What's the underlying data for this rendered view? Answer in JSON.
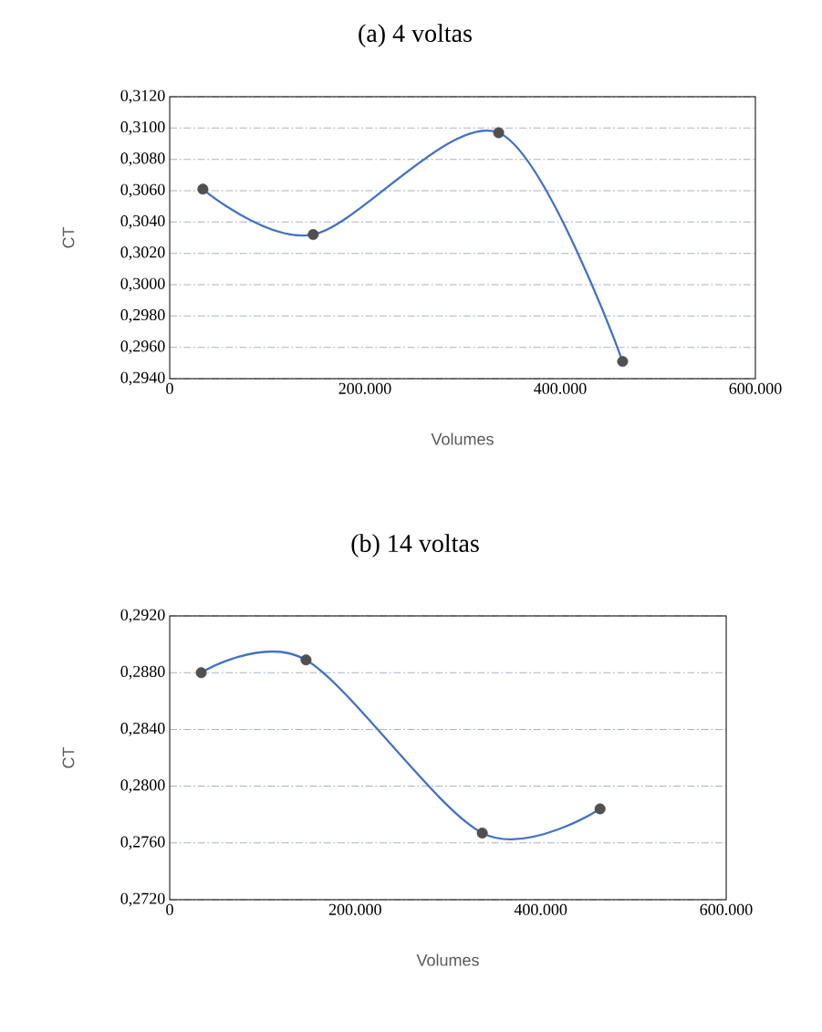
{
  "chart_data": [
    {
      "type": "line",
      "title": "(a) 4 voltas",
      "xlabel": "Volumes",
      "ylabel": "CT",
      "x": [
        34000,
        147000,
        337000,
        464000
      ],
      "series": [
        {
          "type": "line",
          "color": "#4472c4",
          "marker": "none",
          "values": [
            0.3061,
            0.3032,
            0.3097,
            0.2951
          ]
        },
        {
          "type": "scatter",
          "color": "#505050",
          "marker": "circle",
          "values": [
            0.3061,
            0.3032,
            0.3097,
            0.2951
          ]
        }
      ],
      "xlim": [
        0,
        600000
      ],
      "xticks": [
        0,
        {
          "value": 200000,
          "label": "200.000"
        },
        {
          "value": 400000,
          "label": "400.000"
        },
        {
          "value": 600000,
          "label": "600.000"
        }
      ],
      "ylim": [
        0.294,
        0.312
      ],
      "yticks": [
        {
          "value": 0.294,
          "label": "0,2940"
        },
        {
          "value": 0.296,
          "label": "0,2960"
        },
        {
          "value": 0.298,
          "label": "0,2980"
        },
        {
          "value": 0.3,
          "label": "0,3000"
        },
        {
          "value": 0.302,
          "label": "0,3020"
        },
        {
          "value": 0.304,
          "label": "0,3040"
        },
        {
          "value": 0.306,
          "label": "0,3060"
        },
        {
          "value": 0.308,
          "label": "0,3080"
        },
        {
          "value": 0.31,
          "label": "0,3100"
        },
        {
          "value": 0.312,
          "label": "0,3120"
        }
      ],
      "grid": "y"
    },
    {
      "type": "line",
      "title": "(b) 14 voltas",
      "xlabel": "Volumes",
      "ylabel": "CT",
      "x": [
        34000,
        147000,
        337000,
        464000
      ],
      "series": [
        {
          "type": "line",
          "color": "#4472c4",
          "marker": "none",
          "values": [
            0.288,
            0.2889,
            0.2767,
            0.2784
          ]
        },
        {
          "type": "scatter",
          "color": "#505050",
          "marker": "circle",
          "values": [
            0.288,
            0.2889,
            0.2767,
            0.2784
          ]
        }
      ],
      "xlim": [
        0,
        600000
      ],
      "xticks": [
        0,
        {
          "value": 200000,
          "label": "200.000"
        },
        {
          "value": 400000,
          "label": "400.000"
        },
        {
          "value": 600000,
          "label": "600.000"
        }
      ],
      "ylim": [
        0.272,
        0.292
      ],
      "yticks": [
        {
          "value": 0.272,
          "label": "0,2720"
        },
        {
          "value": 0.276,
          "label": "0,2760"
        },
        {
          "value": 0.28,
          "label": "0,2800"
        },
        {
          "value": 0.284,
          "label": "0,2840"
        },
        {
          "value": 0.288,
          "label": "0,2880"
        },
        {
          "value": 0.292,
          "label": "0,2920"
        }
      ],
      "grid": "y"
    }
  ]
}
